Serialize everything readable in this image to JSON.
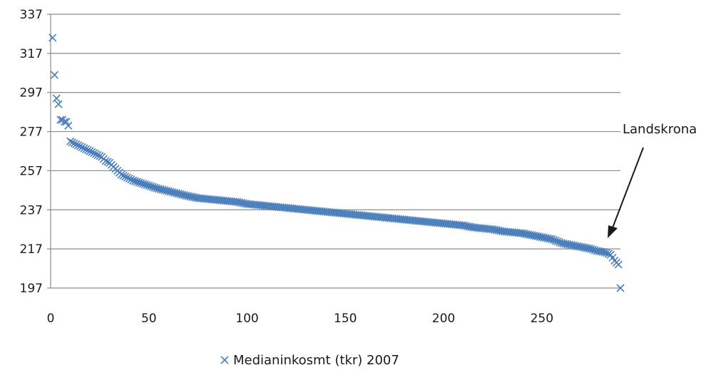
{
  "chart_data": {
    "type": "scatter",
    "title": "",
    "xlabel": "",
    "ylabel": "",
    "xlim": [
      0,
      290
    ],
    "ylim": [
      197,
      337
    ],
    "x_ticks": [
      "0",
      "50",
      "100",
      "150",
      "200",
      "250"
    ],
    "y_ticks": [
      "197",
      "217",
      "237",
      "257",
      "277",
      "297",
      "317",
      "337"
    ],
    "grid": "horizontal",
    "legend_position": "bottom",
    "marker": "x",
    "color": "#4a7ebb",
    "annotation": {
      "text": "Landskrona",
      "points_to": [
        285,
        214
      ]
    },
    "series": [
      {
        "name": "Medianinkosmt (tkr) 2007",
        "points": [
          [
            1,
            325
          ],
          [
            2,
            306
          ],
          [
            3,
            294
          ],
          [
            4,
            291
          ],
          [
            5,
            283
          ],
          [
            6,
            283
          ],
          [
            7,
            282
          ],
          [
            8,
            282
          ],
          [
            9,
            280
          ],
          [
            10,
            272
          ],
          [
            12,
            271
          ],
          [
            14,
            270
          ],
          [
            16,
            269
          ],
          [
            18,
            268
          ],
          [
            20,
            267
          ],
          [
            22,
            266
          ],
          [
            24,
            265
          ],
          [
            26,
            264
          ],
          [
            28,
            262
          ],
          [
            30,
            261
          ],
          [
            32,
            259
          ],
          [
            34,
            257
          ],
          [
            36,
            255
          ],
          [
            38,
            254
          ],
          [
            40,
            253
          ],
          [
            42,
            252
          ],
          [
            45,
            251
          ],
          [
            48,
            250
          ],
          [
            51,
            249
          ],
          [
            54,
            248
          ],
          [
            58,
            247
          ],
          [
            62,
            246
          ],
          [
            66,
            245
          ],
          [
            70,
            244
          ],
          [
            75,
            243
          ],
          [
            80,
            242.5
          ],
          [
            85,
            242
          ],
          [
            90,
            241.5
          ],
          [
            95,
            241
          ],
          [
            100,
            240
          ],
          [
            105,
            239.5
          ],
          [
            110,
            239
          ],
          [
            115,
            238.5
          ],
          [
            120,
            238
          ],
          [
            125,
            237.5
          ],
          [
            130,
            237
          ],
          [
            135,
            236.5
          ],
          [
            140,
            236
          ],
          [
            145,
            235.5
          ],
          [
            150,
            235
          ],
          [
            155,
            234.5
          ],
          [
            160,
            234
          ],
          [
            165,
            233.5
          ],
          [
            170,
            233
          ],
          [
            175,
            232.5
          ],
          [
            180,
            232
          ],
          [
            185,
            231.5
          ],
          [
            190,
            231
          ],
          [
            195,
            230.5
          ],
          [
            200,
            230
          ],
          [
            205,
            229.5
          ],
          [
            210,
            229
          ],
          [
            215,
            228
          ],
          [
            220,
            227.5
          ],
          [
            225,
            227
          ],
          [
            230,
            226
          ],
          [
            235,
            225.5
          ],
          [
            240,
            225
          ],
          [
            245,
            224
          ],
          [
            250,
            223
          ],
          [
            255,
            222
          ],
          [
            260,
            220
          ],
          [
            265,
            219
          ],
          [
            270,
            218
          ],
          [
            275,
            217
          ],
          [
            278,
            216
          ],
          [
            281,
            215.5
          ],
          [
            283,
            215
          ],
          [
            285,
            214
          ],
          [
            287,
            211
          ],
          [
            289,
            209
          ],
          [
            290,
            197
          ]
        ]
      }
    ]
  }
}
